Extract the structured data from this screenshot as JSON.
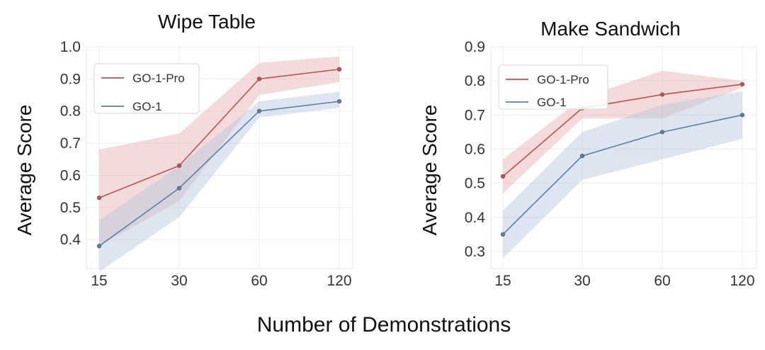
{
  "figure": {
    "shared_xlabel": "Number of Demonstrations"
  },
  "chart_data": [
    {
      "type": "line",
      "title": "Wipe Table",
      "xlabel": "",
      "ylabel": "Average Score",
      "categories": [
        "15",
        "30",
        "60",
        "120"
      ],
      "ylim": [
        0.31,
        1.0
      ],
      "yticks": [
        0.4,
        0.5,
        0.6,
        0.7,
        0.8,
        0.9,
        1.0
      ],
      "ytick_labels": [
        "0.4",
        "0.5",
        "0.6",
        "0.7",
        "0.8",
        "0.9",
        "1.0"
      ],
      "grid": true,
      "legend_position": "top-left",
      "series": [
        {
          "name": "GO-1-Pro",
          "color": "#c0504d",
          "band_color": "#e6b0b0",
          "values": [
            0.53,
            0.63,
            0.9,
            0.93
          ],
          "lower": [
            0.38,
            0.52,
            0.85,
            0.89
          ],
          "upper": [
            0.68,
            0.73,
            0.95,
            0.97
          ]
        },
        {
          "name": "GO-1",
          "color": "#5b7fa6",
          "band_color": "#b3c6dd",
          "values": [
            0.38,
            0.56,
            0.8,
            0.83
          ],
          "lower": [
            0.3,
            0.47,
            0.78,
            0.81
          ],
          "upper": [
            0.46,
            0.63,
            0.83,
            0.86
          ]
        }
      ]
    },
    {
      "type": "line",
      "title": "Make Sandwich",
      "xlabel": "",
      "ylabel": "Average Score",
      "categories": [
        "15",
        "30",
        "60",
        "120"
      ],
      "ylim": [
        0.25,
        0.9
      ],
      "yticks": [
        0.3,
        0.4,
        0.5,
        0.6,
        0.7,
        0.8,
        0.9
      ],
      "ytick_labels": [
        "0.3",
        "0.4",
        "0.5",
        "0.6",
        "0.7",
        "0.8",
        "0.9"
      ],
      "grid": true,
      "legend_position": "top-left",
      "series": [
        {
          "name": "GO-1-Pro",
          "color": "#c0504d",
          "band_color": "#e6b0b0",
          "values": [
            0.52,
            0.72,
            0.76,
            0.79
          ],
          "lower": [
            0.47,
            0.69,
            0.69,
            0.78
          ],
          "upper": [
            0.57,
            0.75,
            0.83,
            0.8
          ]
        },
        {
          "name": "GO-1",
          "color": "#5b7fa6",
          "band_color": "#b3c6dd",
          "values": [
            0.35,
            0.58,
            0.65,
            0.7
          ],
          "lower": [
            0.28,
            0.51,
            0.57,
            0.63
          ],
          "upper": [
            0.42,
            0.65,
            0.73,
            0.77
          ]
        }
      ]
    }
  ]
}
